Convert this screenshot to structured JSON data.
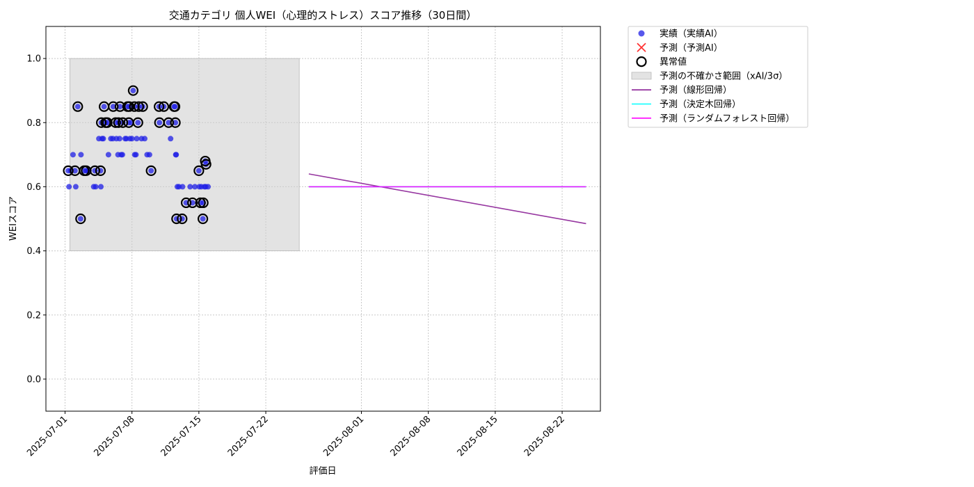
{
  "chart_data": {
    "type": "scatter",
    "title": "交通カテゴリ 個人WEI（心理的ストレス）スコア推移（30日間）",
    "xlabel": "評価日",
    "ylabel": "WEIスコア",
    "xlim": [
      "2025-06-29",
      "2025-08-26"
    ],
    "ylim": [
      -0.1,
      1.1
    ],
    "x_ticks": [
      "2025-07-01",
      "2025-07-08",
      "2025-07-15",
      "2025-07-22",
      "2025-08-01",
      "2025-08-08",
      "2025-08-15",
      "2025-08-22"
    ],
    "y_ticks": [
      0.0,
      0.2,
      0.4,
      0.6,
      0.8,
      1.0
    ],
    "y_tick_labels": [
      "0.0",
      "0.2",
      "0.4",
      "0.6",
      "0.8",
      "1.0"
    ],
    "grid": true,
    "legend_position": "outside-top-right",
    "colors": {
      "actual": "#1f1fe6",
      "predicted": "#ff3333",
      "anomaly_edge": "#000000",
      "band": "#cccccc",
      "linear": "#8b2096",
      "tree": "#00ffff",
      "forest": "#ff00ff"
    },
    "uncertainty_band": {
      "name": "予測の不確かさ範囲（xAI/3σ）",
      "x_start": "2025-07-01 12:00",
      "x_end": "2025-07-25 12:00",
      "y_low": 0.4,
      "y_high": 1.0
    },
    "series": [
      {
        "name": "実績（実績AI）",
        "kind": "scatter",
        "points": [
          [
            "2025-07-01 08:00",
            0.65
          ],
          [
            "2025-07-01 10:00",
            0.6
          ],
          [
            "2025-07-01 14:00",
            0.65
          ],
          [
            "2025-07-01 20:00",
            0.7
          ],
          [
            "2025-07-02 01:00",
            0.65
          ],
          [
            "2025-07-02 03:00",
            0.6
          ],
          [
            "2025-07-02 08:00",
            0.85
          ],
          [
            "2025-07-02 15:00",
            0.5
          ],
          [
            "2025-07-02 16:00",
            0.7
          ],
          [
            "2025-07-03 00:00",
            0.65
          ],
          [
            "2025-07-03 05:00",
            0.65
          ],
          [
            "2025-07-03 09:00",
            0.65
          ],
          [
            "2025-07-03 12:00",
            0.65
          ],
          [
            "2025-07-04 00:00",
            0.6
          ],
          [
            "2025-07-04 03:00",
            0.65
          ],
          [
            "2025-07-04 05:00",
            0.6
          ],
          [
            "2025-07-04 13:00",
            0.75
          ],
          [
            "2025-07-04 17:00",
            0.65
          ],
          [
            "2025-07-04 18:00",
            0.6
          ],
          [
            "2025-07-04 19:00",
            0.8
          ],
          [
            "2025-07-04 21:00",
            0.75
          ],
          [
            "2025-07-05 00:00",
            0.75
          ],
          [
            "2025-07-05 02:00",
            0.85
          ],
          [
            "2025-07-05 06:00",
            0.8
          ],
          [
            "2025-07-05 10:00",
            0.8
          ],
          [
            "2025-07-05 13:00",
            0.7
          ],
          [
            "2025-07-05 19:00",
            0.75
          ],
          [
            "2025-07-06 00:00",
            0.75
          ],
          [
            "2025-07-06 01:00",
            0.85
          ],
          [
            "2025-07-06 07:00",
            0.8
          ],
          [
            "2025-07-06 09:00",
            0.75
          ],
          [
            "2025-07-06 13:00",
            0.7
          ],
          [
            "2025-07-06 14:00",
            0.8
          ],
          [
            "2025-07-06 17:00",
            0.75
          ],
          [
            "2025-07-06 18:00",
            0.85
          ],
          [
            "2025-07-06 21:00",
            0.7
          ],
          [
            "2025-07-07 00:00",
            0.7
          ],
          [
            "2025-07-07 01:00",
            0.8
          ],
          [
            "2025-07-07 07:00",
            0.75
          ],
          [
            "2025-07-07 10:00",
            0.75
          ],
          [
            "2025-07-07 13:00",
            0.85
          ],
          [
            "2025-07-07 16:00",
            0.8
          ],
          [
            "2025-07-07 17:00",
            0.85
          ],
          [
            "2025-07-07 19:00",
            0.75
          ],
          [
            "2025-07-07 22:00",
            0.8
          ],
          [
            "2025-07-08 00:00",
            0.75
          ],
          [
            "2025-07-08 03:00",
            0.9
          ],
          [
            "2025-07-08 06:00",
            0.85
          ],
          [
            "2025-07-08 07:00",
            0.7
          ],
          [
            "2025-07-08 10:00",
            0.7
          ],
          [
            "2025-07-08 12:00",
            0.75
          ],
          [
            "2025-07-08 15:00",
            0.8
          ],
          [
            "2025-07-08 17:00",
            0.85
          ],
          [
            "2025-07-09 00:00",
            0.75
          ],
          [
            "2025-07-09 03:00",
            0.85
          ],
          [
            "2025-07-09 08:00",
            0.75
          ],
          [
            "2025-07-09 14:00",
            0.7
          ],
          [
            "2025-07-09 20:00",
            0.7
          ],
          [
            "2025-07-10 00:00",
            0.65
          ],
          [
            "2025-07-10 20:00",
            0.85
          ],
          [
            "2025-07-10 21:00",
            0.8
          ],
          [
            "2025-07-11 08:00",
            0.85
          ],
          [
            "2025-07-11 20:00",
            0.8
          ],
          [
            "2025-07-12 01:00",
            0.75
          ],
          [
            "2025-07-12 10:00",
            0.85
          ],
          [
            "2025-07-12 12:00",
            0.85
          ],
          [
            "2025-07-12 13:00",
            0.8
          ],
          [
            "2025-07-12 14:00",
            0.7
          ],
          [
            "2025-07-12 15:00",
            0.7
          ],
          [
            "2025-07-12 16:00",
            0.5
          ],
          [
            "2025-07-12 18:00",
            0.6
          ],
          [
            "2025-07-12 22:00",
            0.6
          ],
          [
            "2025-07-13 06:00",
            0.5
          ],
          [
            "2025-07-13 07:00",
            0.6
          ],
          [
            "2025-07-13 16:00",
            0.55
          ],
          [
            "2025-07-14 02:00",
            0.6
          ],
          [
            "2025-07-14 08:00",
            0.55
          ],
          [
            "2025-07-14 14:00",
            0.6
          ],
          [
            "2025-07-15 00:00",
            0.65
          ],
          [
            "2025-07-15 01:00",
            0.6
          ],
          [
            "2025-07-15 04:00",
            0.55
          ],
          [
            "2025-07-15 06:00",
            0.6
          ],
          [
            "2025-07-15 10:00",
            0.5
          ],
          [
            "2025-07-15 11:00",
            0.55
          ],
          [
            "2025-07-15 14:00",
            0.6
          ],
          [
            "2025-07-15 16:00",
            0.68
          ],
          [
            "2025-07-15 17:00",
            0.6
          ],
          [
            "2025-07-15 18:00",
            0.67
          ],
          [
            "2025-07-15 23:00",
            0.6
          ]
        ]
      },
      {
        "name": "予測（予測AI）",
        "kind": "scatter",
        "points": []
      },
      {
        "name": "異常値",
        "kind": "scatter",
        "points": [
          [
            "2025-07-01 08:00",
            0.65
          ],
          [
            "2025-07-02 01:00",
            0.65
          ],
          [
            "2025-07-02 08:00",
            0.85
          ],
          [
            "2025-07-02 15:00",
            0.5
          ],
          [
            "2025-07-03 00:00",
            0.65
          ],
          [
            "2025-07-03 05:00",
            0.65
          ],
          [
            "2025-07-04 03:00",
            0.65
          ],
          [
            "2025-07-04 17:00",
            0.65
          ],
          [
            "2025-07-04 19:00",
            0.8
          ],
          [
            "2025-07-05 02:00",
            0.85
          ],
          [
            "2025-07-05 06:00",
            0.8
          ],
          [
            "2025-07-05 10:00",
            0.8
          ],
          [
            "2025-07-06 01:00",
            0.85
          ],
          [
            "2025-07-06 07:00",
            0.8
          ],
          [
            "2025-07-06 14:00",
            0.8
          ],
          [
            "2025-07-06 18:00",
            0.85
          ],
          [
            "2025-07-07 01:00",
            0.8
          ],
          [
            "2025-07-07 13:00",
            0.85
          ],
          [
            "2025-07-07 16:00",
            0.8
          ],
          [
            "2025-07-07 17:00",
            0.85
          ],
          [
            "2025-07-08 03:00",
            0.9
          ],
          [
            "2025-07-08 06:00",
            0.85
          ],
          [
            "2025-07-08 15:00",
            0.8
          ],
          [
            "2025-07-08 17:00",
            0.85
          ],
          [
            "2025-07-09 03:00",
            0.85
          ],
          [
            "2025-07-10 00:00",
            0.65
          ],
          [
            "2025-07-10 20:00",
            0.85
          ],
          [
            "2025-07-10 21:00",
            0.8
          ],
          [
            "2025-07-11 08:00",
            0.85
          ],
          [
            "2025-07-11 20:00",
            0.8
          ],
          [
            "2025-07-12 10:00",
            0.85
          ],
          [
            "2025-07-12 12:00",
            0.85
          ],
          [
            "2025-07-12 13:00",
            0.8
          ],
          [
            "2025-07-12 16:00",
            0.5
          ],
          [
            "2025-07-13 06:00",
            0.5
          ],
          [
            "2025-07-13 16:00",
            0.55
          ],
          [
            "2025-07-14 08:00",
            0.55
          ],
          [
            "2025-07-15 00:00",
            0.65
          ],
          [
            "2025-07-15 04:00",
            0.55
          ],
          [
            "2025-07-15 10:00",
            0.5
          ],
          [
            "2025-07-15 11:00",
            0.55
          ],
          [
            "2025-07-15 16:00",
            0.68
          ],
          [
            "2025-07-15 18:00",
            0.67
          ]
        ]
      },
      {
        "name": "予測（線形回帰）",
        "kind": "line",
        "points": [
          [
            "2025-07-26 12:00",
            0.64
          ],
          [
            "2025-08-24 12:00",
            0.485
          ]
        ]
      },
      {
        "name": "予測（決定木回帰）",
        "kind": "line",
        "points": [
          [
            "2025-07-26 12:00",
            0.6
          ],
          [
            "2025-08-24 12:00",
            0.6
          ]
        ]
      },
      {
        "name": "予測（ランダムフォレスト回帰）",
        "kind": "line",
        "points": [
          [
            "2025-07-26 12:00",
            0.6
          ],
          [
            "2025-08-24 12:00",
            0.6
          ]
        ]
      }
    ]
  }
}
